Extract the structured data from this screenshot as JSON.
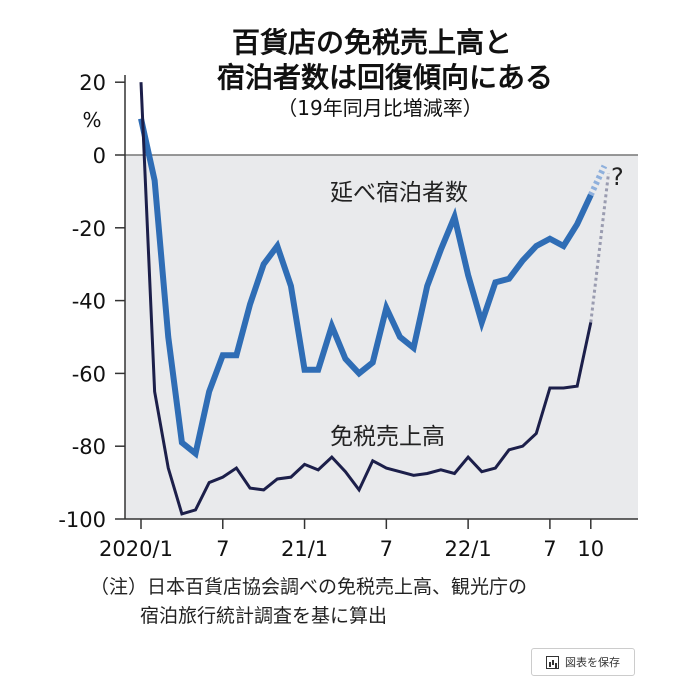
{
  "chart_data": {
    "type": "line",
    "title": [
      "百貨店の免税売上高と",
      "宿泊者数は回復傾向にある"
    ],
    "subtitle": "（19年同月比増減率）",
    "ylabel": "%",
    "ylim": [
      -100,
      20
    ],
    "yticks": [
      20,
      0,
      -20,
      -40,
      -60,
      -80,
      -100
    ],
    "ytick_labels": [
      "20",
      "0",
      "-20",
      "-40",
      "-60",
      "-80",
      "-100"
    ],
    "xticks": [
      0,
      6,
      12,
      18,
      24,
      30,
      33
    ],
    "xtick_labels": [
      "2020/1",
      "7",
      "21/1",
      "7",
      "22/1",
      "7",
      "10"
    ],
    "xlim": [
      0,
      36
    ],
    "series": [
      {
        "name": "延べ宿泊者数",
        "color": "#2f6db5",
        "values": [
          10,
          -7,
          -50,
          -79,
          -82,
          -65,
          -55,
          -55,
          -41,
          -30,
          -25,
          -36,
          -59,
          -59,
          -47,
          -56,
          -60,
          -57,
          -42,
          -50,
          -53,
          -36,
          -26,
          -17,
          -33,
          -46,
          -35,
          -34,
          -29,
          -25,
          -23,
          -25,
          -19,
          -11
        ],
        "projection": [
          [
            33,
            -11
          ],
          [
            34,
            -3
          ]
        ]
      },
      {
        "name": "免税売上高",
        "color": "#1c1f4a",
        "values": [
          20,
          -65,
          -86,
          -98.6,
          -97.5,
          -90,
          -88.5,
          -86,
          -91.5,
          -92,
          -89,
          -88.5,
          -85,
          -86.5,
          -83,
          -87,
          -92,
          -84,
          -86,
          -87,
          -88,
          -87.5,
          -86.5,
          -87.5,
          -83,
          -87,
          -86,
          -81,
          -80,
          -76.5,
          -64,
          -64,
          -63.5,
          -46
        ],
        "projection": [
          [
            33,
            -46
          ],
          [
            34.3,
            -5
          ]
        ]
      }
    ],
    "annotation": "?",
    "note": [
      "（注）日本百貨店協会調べの免税売上高、観光庁の",
      "宿泊旅行統計調査を基に算出"
    ]
  },
  "ui": {
    "save_label": "図表を保存"
  }
}
